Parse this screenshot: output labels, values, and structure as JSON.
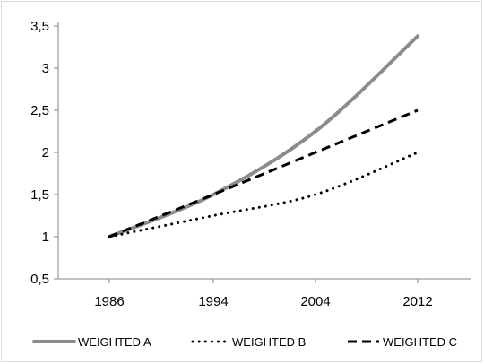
{
  "chart_data": {
    "type": "line",
    "categories": [
      "1986",
      "1994",
      "2004",
      "2012"
    ],
    "ylim": [
      0.5,
      3.5
    ],
    "yticks": [
      "0,5",
      "1",
      "1,5",
      "2",
      "2,5",
      "3",
      "3,5"
    ],
    "grid": false,
    "legend_position": "bottom",
    "series": [
      {
        "name": "WEIGHTED A",
        "values": [
          1.0,
          1.5,
          2.25,
          3.38
        ],
        "color": "#8c8c8c",
        "style": "solid"
      },
      {
        "name": "WEIGHTED B",
        "values": [
          1.0,
          1.25,
          1.5,
          2.0
        ],
        "color": "#000000",
        "style": "dotted"
      },
      {
        "name": "WEIGHTED C",
        "values": [
          1.0,
          1.5,
          2.0,
          2.5
        ],
        "color": "#000000",
        "style": "dashed"
      }
    ]
  }
}
